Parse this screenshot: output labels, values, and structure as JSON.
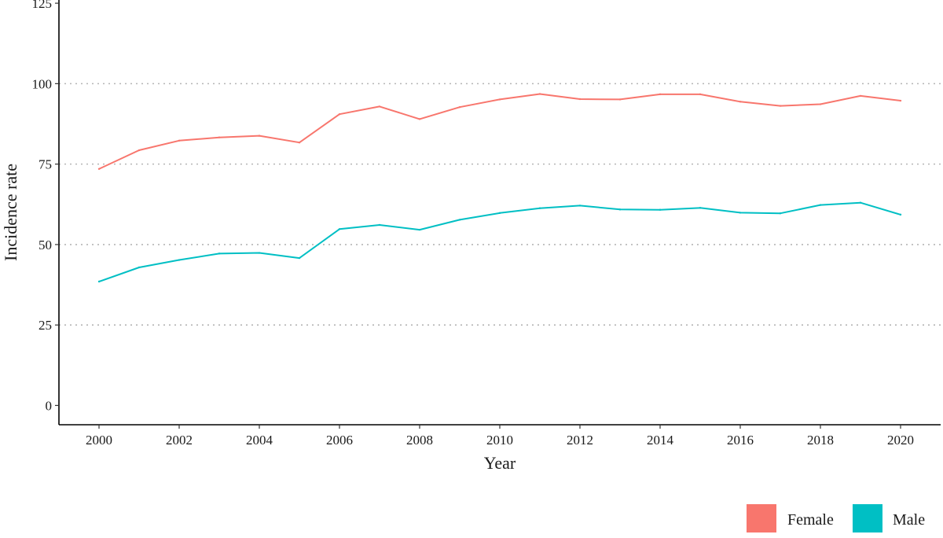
{
  "chart_data": {
    "type": "line",
    "title": "",
    "xlabel": "Year",
    "ylabel": "Incidence rate",
    "x": [
      2000,
      2001,
      2002,
      2003,
      2004,
      2005,
      2006,
      2007,
      2008,
      2009,
      2010,
      2011,
      2012,
      2013,
      2014,
      2015,
      2016,
      2017,
      2018,
      2019,
      2020
    ],
    "x_ticks": [
      "2000",
      "2002",
      "2004",
      "2006",
      "2008",
      "2010",
      "2012",
      "2014",
      "2016",
      "2018",
      "2020"
    ],
    "y_ticks": [
      "0",
      "25",
      "50",
      "75",
      "100",
      "125"
    ],
    "xlim": [
      1999,
      2021
    ],
    "ylim": [
      -6,
      126
    ],
    "grid": "horizontal dotted",
    "legend_position": "bottom-right",
    "series": [
      {
        "name": "Female",
        "color": "#F8766D",
        "values": [
          73.5,
          79.3,
          82.3,
          83.3,
          83.8,
          81.7,
          90.5,
          92.9,
          89.0,
          92.7,
          95.1,
          96.8,
          95.2,
          95.1,
          96.7,
          96.7,
          94.4,
          93.1,
          93.6,
          96.2,
          94.7
        ]
      },
      {
        "name": "Male",
        "color": "#00BFC4",
        "values": [
          38.5,
          42.9,
          45.2,
          47.2,
          47.4,
          45.8,
          54.8,
          56.1,
          54.6,
          57.7,
          59.8,
          61.3,
          62.1,
          60.9,
          60.8,
          61.4,
          59.9,
          59.7,
          62.3,
          63.0,
          59.3
        ]
      }
    ]
  }
}
